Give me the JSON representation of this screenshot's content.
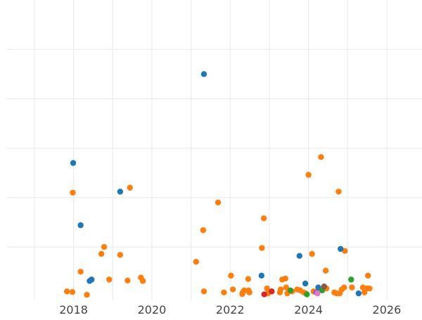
{
  "chart_data": {
    "type": "scatter",
    "title": "",
    "xlabel": "",
    "ylabel": "",
    "grid": true,
    "xlim": [
      2016.3,
      2026.9
    ],
    "ylim": [
      -2,
      150
    ],
    "x_tick_labels": [
      "2018",
      "2020",
      "2022",
      "2024",
      "2026"
    ],
    "x_tick_values": [
      2018,
      2020,
      2022,
      2024,
      2026
    ],
    "y_gridlines": [
      25,
      50,
      75,
      100,
      125
    ],
    "colors": {
      "orange": "#ff7f0e",
      "blue": "#1f77b4",
      "green": "#2ca02c",
      "red": "#d62728",
      "purple": "#9467bd",
      "brown": "#8c564b",
      "pink": "#e377c2",
      "grid": "#e8e8e8",
      "tick_text": "#444444"
    },
    "series": [
      {
        "color": "orange",
        "points": [
          [
            2017.98,
            52.5
          ],
          [
            2017.83,
            2.5
          ],
          [
            2017.97,
            2.2
          ],
          [
            2018.18,
            12.5
          ],
          [
            2018.34,
            0.8
          ],
          [
            2018.71,
            21.5
          ],
          [
            2018.78,
            25
          ],
          [
            2018.91,
            8.5
          ],
          [
            2019.19,
            21
          ],
          [
            2019.38,
            8
          ],
          [
            2019.44,
            55
          ],
          [
            2019.72,
            9.5
          ],
          [
            2019.77,
            7.8
          ],
          [
            2021.13,
            17.5
          ],
          [
            2021.33,
            2.5
          ],
          [
            2021.31,
            33.5
          ],
          [
            2021.69,
            47.5
          ],
          [
            2021.84,
            2
          ],
          [
            2022.02,
            10.5
          ],
          [
            2022.07,
            3.5
          ],
          [
            2022.32,
            2
          ],
          [
            2022.31,
            1.2
          ],
          [
            2022.36,
            3
          ],
          [
            2022.47,
            3
          ],
          [
            2022.46,
            8.8
          ],
          [
            2022.49,
            2
          ],
          [
            2022.81,
            24.5
          ],
          [
            2022.86,
            39.5
          ],
          [
            2022.94,
            4
          ],
          [
            2022.97,
            1.5
          ],
          [
            2023.06,
            2.5
          ],
          [
            2023.27,
            2
          ],
          [
            2023.29,
            3.5
          ],
          [
            2023.33,
            8.5
          ],
          [
            2023.41,
            9
          ],
          [
            2023.43,
            4.5
          ],
          [
            2023.46,
            1.5
          ],
          [
            2023.51,
            3
          ],
          [
            2023.71,
            3.5
          ],
          [
            2023.79,
            3
          ],
          [
            2023.88,
            2
          ],
          [
            2023.93,
            1.5
          ],
          [
            2024.0,
            61.5
          ],
          [
            2024.09,
            21.5
          ],
          [
            2024.13,
            2.5
          ],
          [
            2024.27,
            3.5
          ],
          [
            2024.32,
            70.5
          ],
          [
            2024.44,
            13
          ],
          [
            2024.46,
            4
          ],
          [
            2024.72,
            1.5
          ],
          [
            2024.77,
            53
          ],
          [
            2024.8,
            1.5
          ],
          [
            2024.85,
            3.5
          ],
          [
            2024.91,
            4.5
          ],
          [
            2024.93,
            23
          ],
          [
            2025.11,
            4.5
          ],
          [
            2025.39,
            4.5
          ],
          [
            2025.43,
            2
          ],
          [
            2025.49,
            4
          ],
          [
            2025.52,
            10.5
          ],
          [
            2025.56,
            4
          ],
          [
            2023.58,
            2.5
          ],
          [
            2024.66,
            2
          ]
        ]
      },
      {
        "color": "blue",
        "points": [
          [
            2017.99,
            67.5
          ],
          [
            2018.18,
            36
          ],
          [
            2018.41,
            7.8
          ],
          [
            2018.46,
            8.5
          ],
          [
            2019.19,
            53
          ],
          [
            2021.33,
            112.5
          ],
          [
            2022.8,
            10.5
          ],
          [
            2023.77,
            20.5
          ],
          [
            2023.92,
            6.5
          ],
          [
            2024.25,
            4.5
          ],
          [
            2024.82,
            24
          ],
          [
            2025.28,
            1.5
          ]
        ]
      },
      {
        "color": "green",
        "points": [
          [
            2023.54,
            3
          ],
          [
            2023.96,
            1
          ],
          [
            2024.35,
            3
          ],
          [
            2025.09,
            8.5
          ]
        ]
      },
      {
        "color": "red",
        "points": [
          [
            2022.87,
            1
          ],
          [
            2023.06,
            2.5
          ]
        ]
      },
      {
        "color": "purple",
        "points": [
          [
            2024.19,
            2
          ]
        ]
      },
      {
        "color": "brown",
        "points": [
          [
            2024.4,
            5
          ]
        ]
      },
      {
        "color": "pink",
        "points": [
          [
            2024.23,
            1.5
          ]
        ]
      }
    ]
  }
}
